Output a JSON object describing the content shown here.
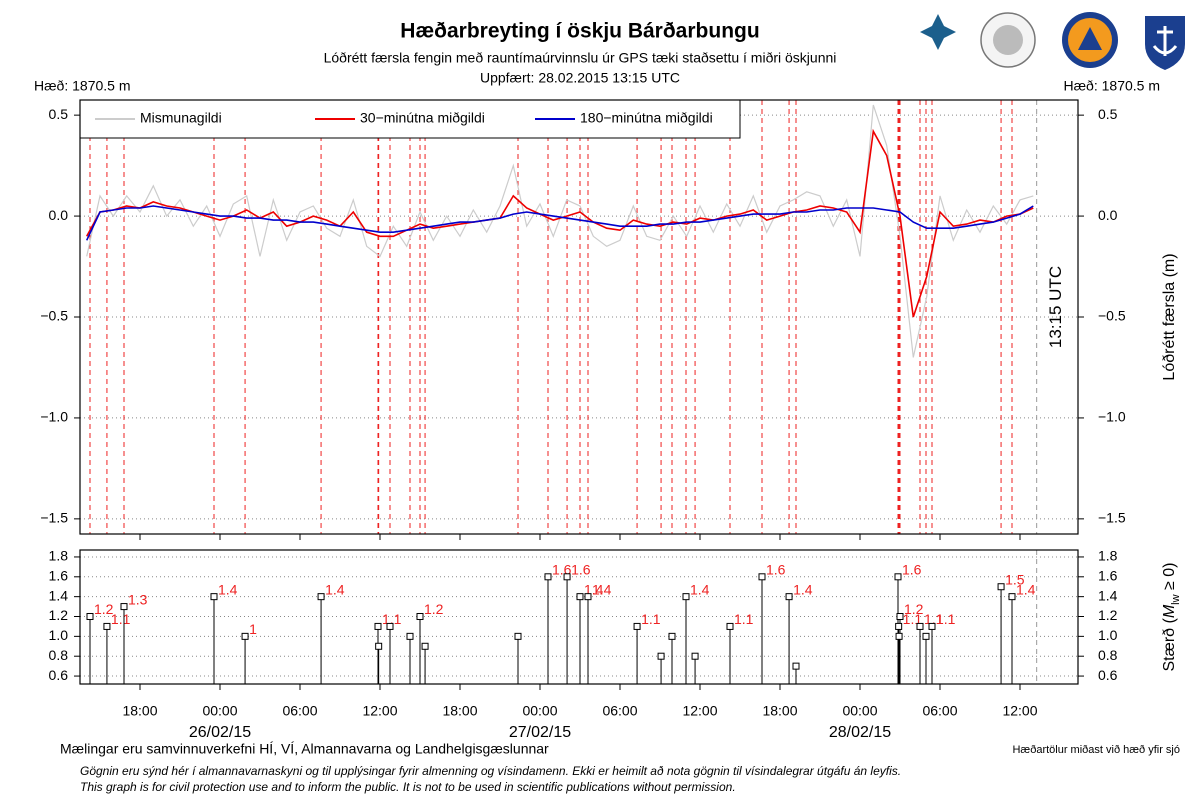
{
  "header": {
    "title": "Hæðarbreyting í öskju Bárðarbungu",
    "subtitle": "Lóðrétt færsla fengin með rauntímaúrvinnslu úr GPS tæki staðsettu í miðri öskjunni",
    "updated": "Uppfært: 28.02.2015 13:15 UTC",
    "height_left": "Hæð: 1870.5 m",
    "height_right": "Hæð: 1870.5 m"
  },
  "chart_data": [
    {
      "type": "line",
      "legend": "top-left",
      "grid": true,
      "x": [
        -10,
        -9,
        -8,
        -7,
        -6,
        -5,
        -4,
        -3,
        -2,
        -1,
        0,
        1,
        2,
        3,
        4,
        5,
        6,
        7,
        8,
        9,
        10,
        11,
        12,
        13,
        14,
        15,
        16,
        17,
        18,
        19,
        20,
        21,
        22,
        23,
        24,
        25,
        26,
        27,
        28,
        29,
        30,
        31,
        32,
        33,
        34,
        35,
        36,
        37,
        38,
        39,
        40,
        41,
        42,
        43,
        44,
        45,
        46,
        47,
        48,
        49,
        50,
        51,
        52,
        53,
        54,
        55,
        56,
        57,
        58,
        59,
        60,
        61
      ],
      "series": [
        {
          "name": "Mismunagildi",
          "color": "#cccccc",
          "values": [
            -0.2,
            0.1,
            0.0,
            0.1,
            0.02,
            0.15,
            0.0,
            0.08,
            -0.05,
            0.05,
            -0.1,
            0.06,
            0.1,
            -0.2,
            0.08,
            -0.12,
            0.02,
            0.05,
            -0.06,
            -0.1,
            0.08,
            -0.15,
            -0.2,
            -0.05,
            -0.15,
            0.02,
            -0.12,
            0.0,
            -0.1,
            0.03,
            -0.08,
            0.05,
            0.25,
            -0.05,
            0.06,
            -0.1,
            0.08,
            0.05,
            -0.1,
            -0.15,
            -0.12,
            0.05,
            -0.1,
            -0.12,
            0.0,
            -0.1,
            0.05,
            -0.08,
            0.06,
            -0.05,
            0.1,
            -0.08,
            0.05,
            0.08,
            0.12,
            0.1,
            -0.05,
            0.08,
            -0.2,
            0.55,
            0.35,
            -0.1,
            -0.7,
            -0.4,
            0.1,
            -0.12,
            0.03,
            -0.08,
            0.05,
            -0.04,
            0.08,
            0.1
          ]
        },
        {
          "name": "30−minútna miðgildi",
          "color": "#ee0000",
          "values": [
            -0.1,
            0.02,
            0.03,
            0.05,
            0.04,
            0.07,
            0.05,
            0.04,
            0.02,
            0.0,
            -0.02,
            0.0,
            0.03,
            -0.01,
            0.02,
            -0.05,
            -0.03,
            0.0,
            -0.02,
            -0.05,
            0.02,
            -0.08,
            -0.1,
            -0.1,
            -0.07,
            -0.04,
            -0.06,
            -0.05,
            -0.04,
            -0.03,
            -0.02,
            -0.01,
            0.1,
            0.04,
            0.01,
            -0.02,
            0.0,
            0.02,
            -0.03,
            -0.06,
            -0.07,
            -0.02,
            -0.04,
            -0.05,
            -0.03,
            -0.04,
            -0.01,
            -0.02,
            0.0,
            0.01,
            0.03,
            -0.02,
            0.0,
            0.02,
            0.03,
            0.05,
            0.04,
            0.02,
            -0.08,
            0.42,
            0.3,
            0.0,
            -0.5,
            -0.3,
            0.02,
            -0.05,
            -0.04,
            -0.02,
            -0.03,
            0.0,
            0.01,
            0.04
          ]
        },
        {
          "name": "180−minútna miðgildi",
          "color": "#0000cc",
          "values": [
            -0.12,
            0.02,
            0.03,
            0.04,
            0.04,
            0.05,
            0.04,
            0.03,
            0.02,
            0.01,
            0.0,
            0.0,
            -0.01,
            -0.01,
            -0.02,
            -0.02,
            -0.03,
            -0.03,
            -0.04,
            -0.05,
            -0.06,
            -0.07,
            -0.08,
            -0.08,
            -0.07,
            -0.06,
            -0.05,
            -0.04,
            -0.03,
            -0.03,
            -0.02,
            -0.01,
            0.01,
            0.02,
            0.01,
            0.0,
            -0.01,
            -0.02,
            -0.03,
            -0.04,
            -0.05,
            -0.05,
            -0.05,
            -0.04,
            -0.04,
            -0.03,
            -0.03,
            -0.02,
            -0.01,
            0.0,
            0.01,
            0.01,
            0.01,
            0.02,
            0.02,
            0.03,
            0.03,
            0.04,
            0.04,
            0.04,
            0.03,
            0.02,
            -0.03,
            -0.06,
            -0.06,
            -0.06,
            -0.05,
            -0.04,
            -0.03,
            -0.01,
            0.01,
            0.05
          ]
        }
      ],
      "xlim": [
        -10.5,
        64.35
      ],
      "xticks": [
        -6,
        0,
        6,
        12,
        18,
        24,
        30,
        36,
        42,
        48,
        54,
        60
      ],
      "ylim": [
        -1.575,
        0.575
      ],
      "yticks": [
        {
          "value": -1.5,
          "label": "−1.5"
        },
        {
          "value": -1.0,
          "label": "−1.0"
        },
        {
          "value": -0.5,
          "label": "−0.5"
        },
        {
          "value": 0.0,
          "label": "0.0"
        },
        0.5
      ],
      "y_axis_label": "Lóðrétt færsla (m)",
      "now": {
        "value": 61.25,
        "label": "13:15 UTC"
      }
    },
    {
      "type": "stem",
      "color": "#000000",
      "label_color": "#ee2222",
      "grid": true,
      "x": [
        -9.75,
        -8.48,
        -7.2,
        -0.45,
        1.88,
        7.58,
        11.85,
        11.9,
        12.75,
        14.25,
        15.0,
        15.38,
        22.35,
        24.6,
        26.03,
        27.0,
        27.6,
        31.28,
        33.08,
        33.9,
        34.95,
        35.63,
        38.25,
        40.65,
        42.68,
        43.2,
        50.85,
        51.0,
        50.9,
        50.93,
        52.5,
        52.95,
        53.4,
        58.58,
        59.4
      ],
      "values": [
        1.2,
        1.1,
        1.3,
        1.4,
        1.0,
        1.4,
        1.1,
        0.9,
        1.1,
        1.0,
        1.2,
        0.9,
        1.0,
        1.6,
        1.6,
        1.4,
        1.4,
        1.1,
        0.8,
        1.0,
        1.4,
        0.8,
        1.1,
        1.6,
        1.4,
        0.7,
        1.6,
        1.2,
        1.1,
        1.0,
        1.1,
        1.0,
        1.1,
        1.5,
        1.4
      ],
      "value_labels": [
        "1.2",
        "1.1",
        "1.3",
        "1.4",
        "1",
        "1.4",
        "1.1",
        null,
        null,
        null,
        "1.2",
        null,
        null,
        "1.6",
        "1.6",
        "1.4",
        "1.4",
        "1.1",
        null,
        null,
        "1.4",
        null,
        "1.1",
        "1.6",
        "1.4",
        null,
        "1.6",
        "1.2",
        "1.1",
        null,
        "1.1",
        null,
        "1.1",
        "1.5",
        "1.4"
      ],
      "xlim": [
        -10.5,
        64.35
      ],
      "xticks": [
        {
          "value": -6,
          "label": "18:00"
        },
        {
          "value": 0,
          "label": "00:00"
        },
        {
          "value": 6,
          "label": "06:00"
        },
        {
          "value": 12,
          "label": "12:00"
        },
        {
          "value": 18,
          "label": "18:00"
        },
        {
          "value": 24,
          "label": "00:00"
        },
        {
          "value": 30,
          "label": "06:00"
        },
        {
          "value": 36,
          "label": "12:00"
        },
        {
          "value": 42,
          "label": "18:00"
        },
        {
          "value": 48,
          "label": "00:00"
        },
        {
          "value": 54,
          "label": "06:00"
        },
        {
          "value": 60,
          "label": "12:00"
        }
      ],
      "date_labels": [
        {
          "value": 0,
          "label": "26/02/15"
        },
        {
          "value": 24,
          "label": "27/02/15"
        },
        {
          "value": 48,
          "label": "28/02/15"
        }
      ],
      "ylim": [
        0.52,
        1.87
      ],
      "yticks": [
        0.6,
        0.8,
        {
          "value": 1.0,
          "label": "1.0"
        },
        1.2,
        1.4,
        1.6,
        1.8
      ],
      "y_axis_label": [
        "Stærð (",
        "M",
        "lw",
        " ≥ 0)"
      ]
    }
  ],
  "footer": {
    "credit": "Mælingar eru samvinnuverkefni HÍ, VÍ, Almannavarna og Landhelgisgæslunnar",
    "datum": "Hæðartölur miðast við hæð yfir sjó",
    "note_is": "Gögnin eru sýnd hér í almannavarnaskyni og til upplýsingar fyrir almenning og vísindamenn. Ekki er heimilt að nota gögnin til vísindalegrar útgáfu án leyfis.",
    "note_en": "This graph is for civil protection use and to inform the public. It is not to be used in scientific publications without permission."
  }
}
